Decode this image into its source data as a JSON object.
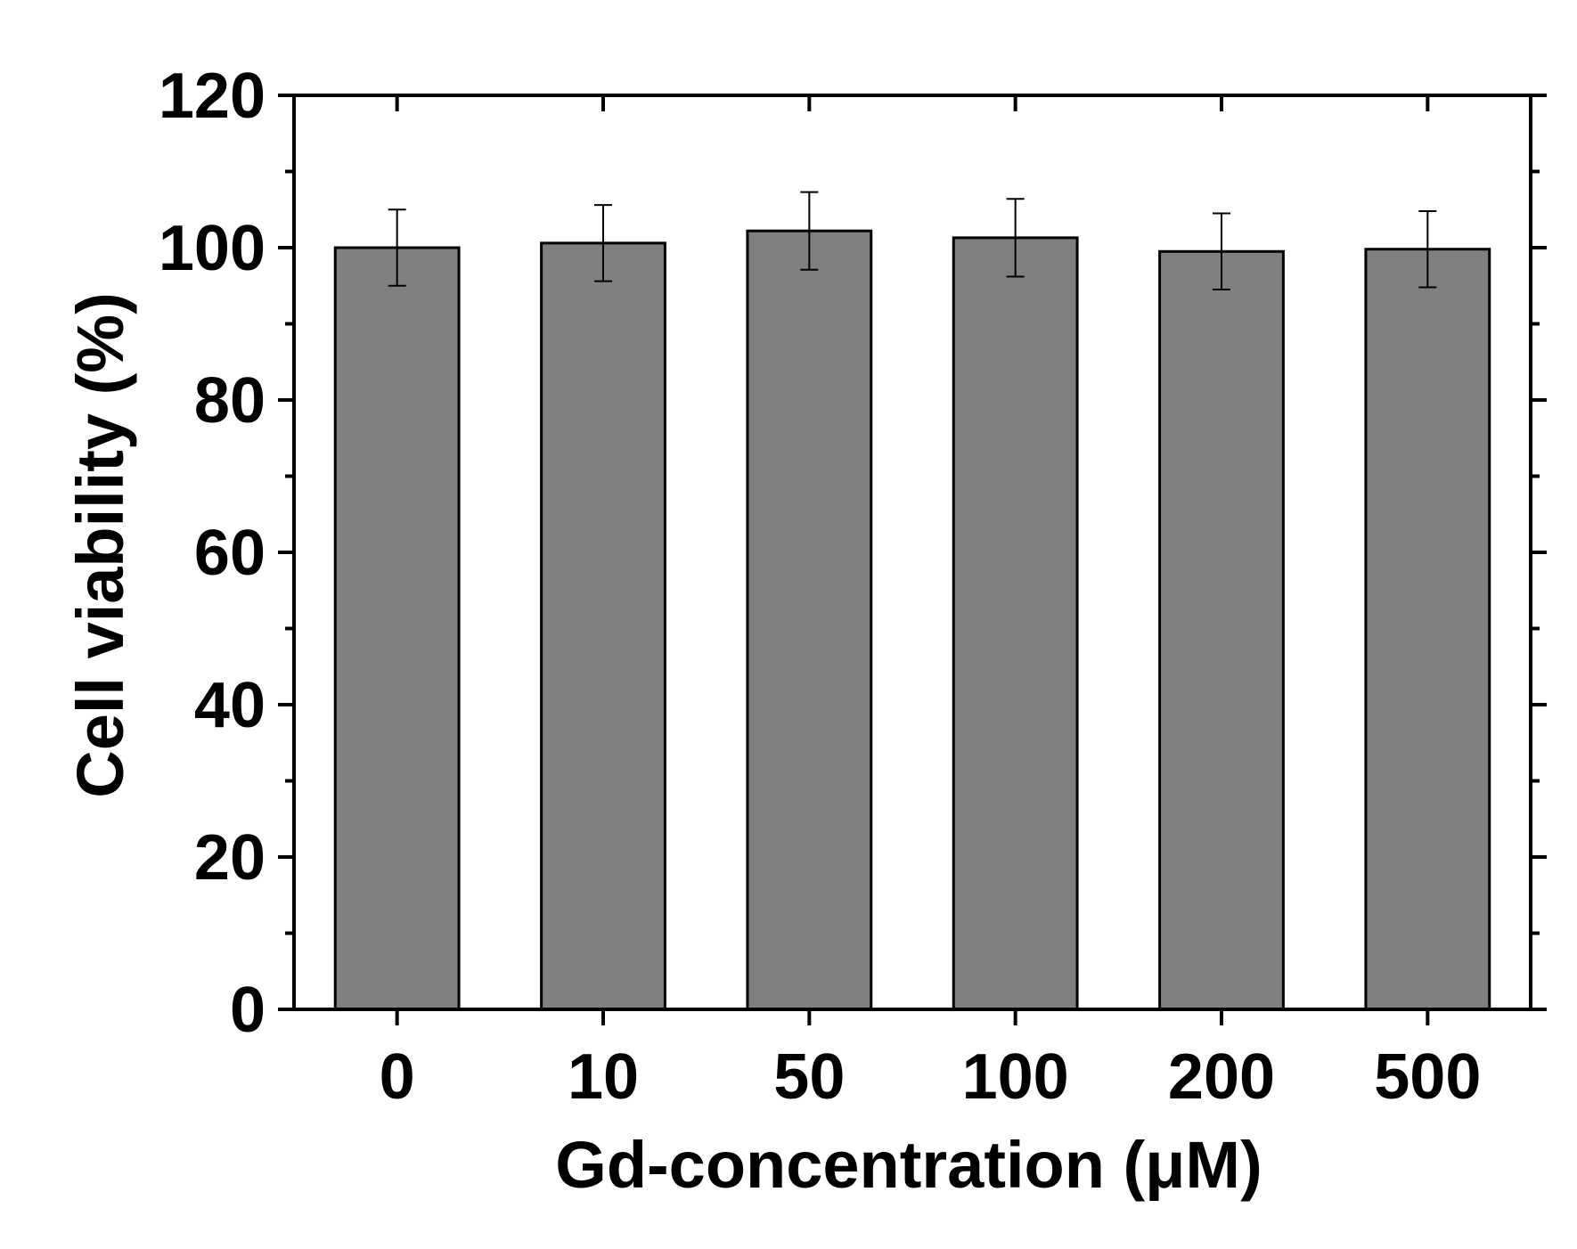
{
  "chart_data": {
    "type": "bar",
    "title": "",
    "xlabel": "Gd-concentration (μM)",
    "ylabel": "Cell viability (%)",
    "categories": [
      "0",
      "10",
      "50",
      "100",
      "200",
      "500"
    ],
    "values": [
      100.0,
      100.6,
      102.2,
      101.3,
      99.5,
      99.8
    ],
    "errors": [
      5.0,
      5.0,
      5.1,
      5.1,
      5.0,
      5.0
    ],
    "ylim": [
      0,
      120
    ],
    "yticks": [
      "0",
      "20",
      "40",
      "60",
      "80",
      "100",
      "120"
    ],
    "grid": false,
    "legend": "none",
    "bar_color": "#808080",
    "edge_color": "#000000"
  }
}
